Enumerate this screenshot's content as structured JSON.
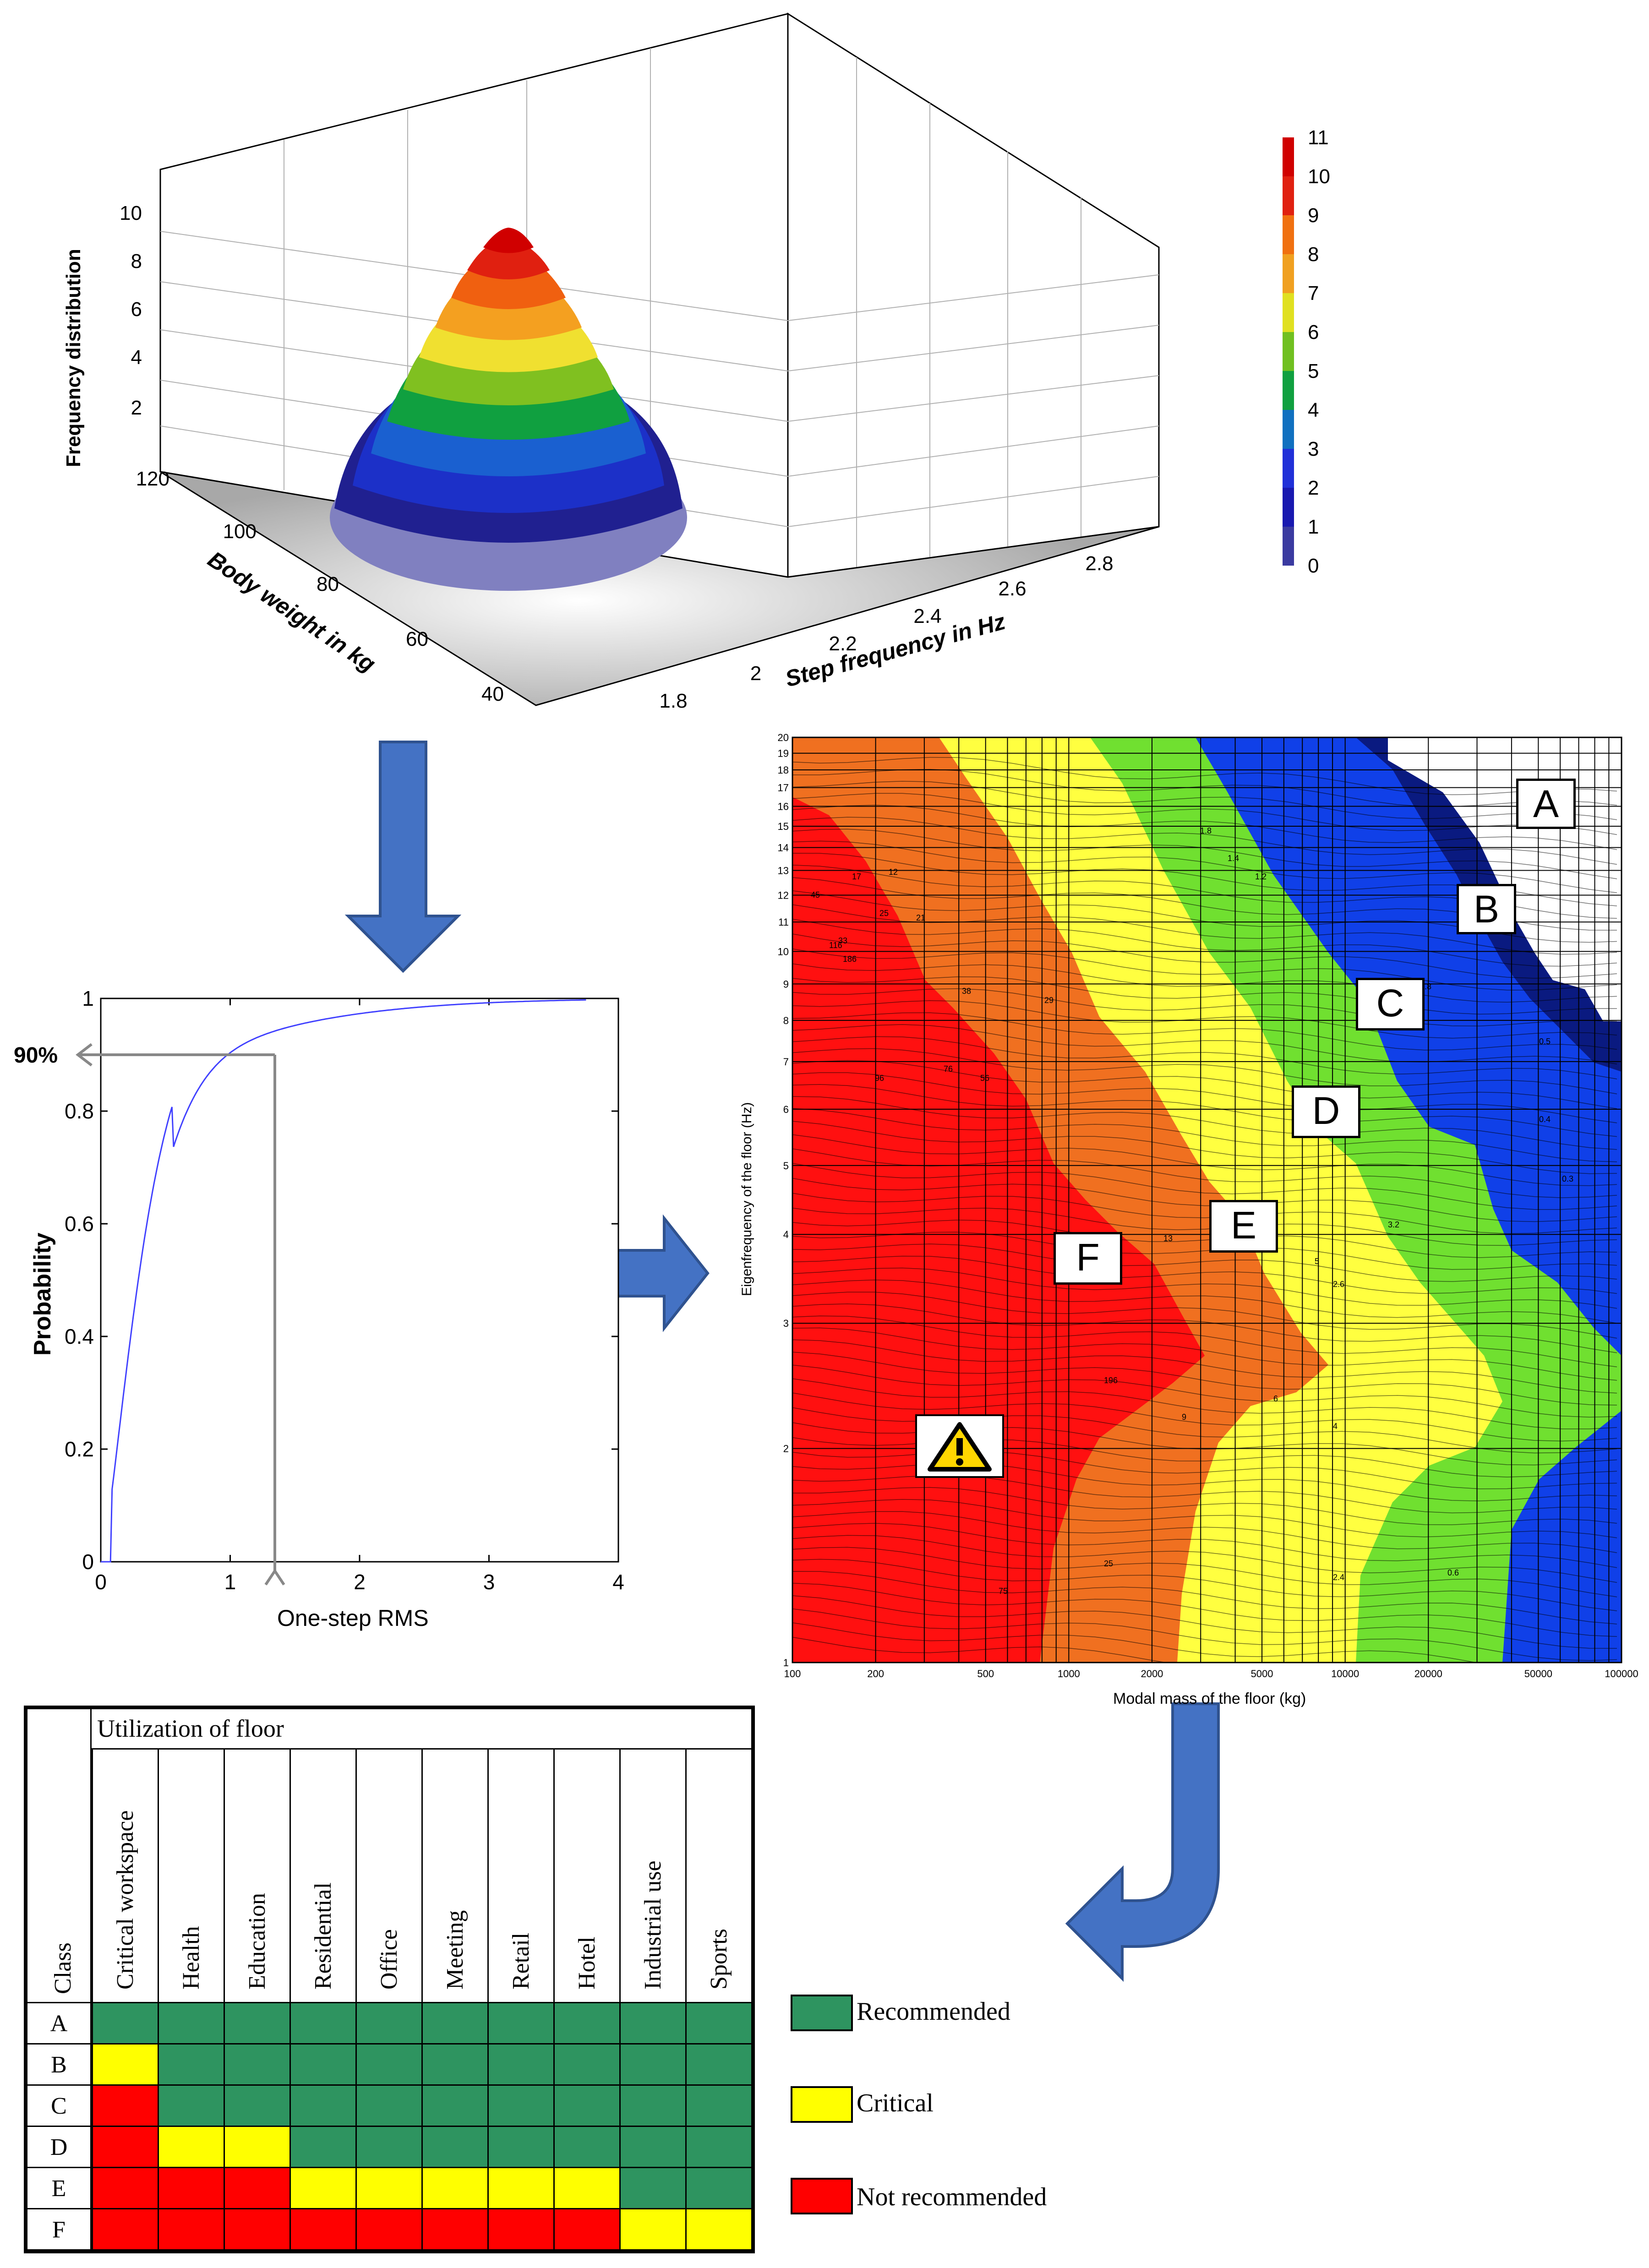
{
  "surface3d": {
    "z_axis_label": "Frequency distribution",
    "z_ticks": [
      "2",
      "4",
      "6",
      "8",
      "10"
    ],
    "y_axis_label": "Body weight in kg",
    "y_ticks": [
      "40",
      "60",
      "80",
      "100",
      "120"
    ],
    "x_axis_label": "Step frequency in Hz",
    "x_ticks": [
      "1.8",
      "2",
      "2.2",
      "2.4",
      "2.6",
      "2.8"
    ],
    "colorbar_ticks": [
      "0",
      "1",
      "2",
      "3",
      "4",
      "5",
      "6",
      "7",
      "8",
      "9",
      "10",
      "11"
    ],
    "colorbar_colors": [
      "#7f7fb0",
      "#3a3aa0",
      "#1818b0",
      "#2030d8",
      "#1070c0",
      "#10a040",
      "#70c020",
      "#e0e020",
      "#f0a020",
      "#f07010",
      "#e02010",
      "#d00000"
    ]
  },
  "cdf_chart": {
    "ylabel": "Probability",
    "xlabel": "One-step RMS",
    "y_ticks": [
      "0",
      "0.2",
      "0.4",
      "0.6",
      "0.8",
      "1"
    ],
    "x_ticks": [
      "0",
      "1",
      "2",
      "3",
      "4"
    ],
    "marker_label": "90%"
  },
  "contour_chart": {
    "ylabel": "Eigenfrequency of the floor (Hz)",
    "xlabel": "Modal mass of the floor (kg)",
    "y_ticks": [
      "1",
      "2",
      "3",
      "4",
      "5",
      "6",
      "7",
      "8",
      "9",
      "10",
      "11",
      "12",
      "13",
      "14",
      "15",
      "16",
      "17",
      "18",
      "19",
      "20"
    ],
    "x_ticks": [
      "100",
      "200",
      "500",
      "1000",
      "2000",
      "5000",
      "10000",
      "20000",
      "50000",
      "100000"
    ],
    "zones": [
      "A",
      "B",
      "C",
      "D",
      "E",
      "F"
    ],
    "zone_colors": {
      "A": "#ffffff",
      "B": "#0a1a80",
      "C": "#1040e8",
      "D": "#70e030",
      "E": "#ffff40",
      "F": "#f07020",
      "G": "#ff1010"
    },
    "contour_labels": [
      {
        "t": "116"
      },
      {
        "t": "186"
      },
      {
        "t": "96"
      },
      {
        "t": "76"
      },
      {
        "t": "56"
      },
      {
        "t": "38"
      },
      {
        "t": "29"
      },
      {
        "t": "12"
      },
      {
        "t": "17"
      },
      {
        "t": "25"
      },
      {
        "t": "45"
      },
      {
        "t": "33"
      },
      {
        "t": "21"
      },
      {
        "t": "13"
      },
      {
        "t": "8"
      },
      {
        "t": "5"
      },
      {
        "t": "3.2"
      },
      {
        "t": "2.6"
      },
      {
        "t": "1.8"
      },
      {
        "t": "1.4"
      },
      {
        "t": "1.2"
      },
      {
        "t": "0.8"
      },
      {
        "t": "0.5"
      },
      {
        "t": "0.4"
      },
      {
        "t": "0.3"
      },
      {
        "t": "196"
      },
      {
        "t": "75"
      },
      {
        "t": "25"
      },
      {
        "t": "9"
      },
      {
        "t": "6"
      },
      {
        "t": "4"
      },
      {
        "t": "2.4"
      },
      {
        "t": "0.6"
      }
    ]
  },
  "classification_table": {
    "header_title": "Utilization of floor",
    "class_header": "Class",
    "columns": [
      "Critical workspace",
      "Health",
      "Education",
      "Residential",
      "Office",
      "Meeting",
      "Retail",
      "Hotel",
      "Industrial use",
      "Sports"
    ],
    "rows": [
      {
        "cls": "A",
        "cells": [
          "R",
          "R",
          "R",
          "R",
          "R",
          "R",
          "R",
          "R",
          "R",
          "R"
        ]
      },
      {
        "cls": "B",
        "cells": [
          "C",
          "R",
          "R",
          "R",
          "R",
          "R",
          "R",
          "R",
          "R",
          "R"
        ]
      },
      {
        "cls": "C",
        "cells": [
          "N",
          "R",
          "R",
          "R",
          "R",
          "R",
          "R",
          "R",
          "R",
          "R"
        ]
      },
      {
        "cls": "D",
        "cells": [
          "N",
          "C",
          "C",
          "R",
          "R",
          "R",
          "R",
          "R",
          "R",
          "R"
        ]
      },
      {
        "cls": "E",
        "cells": [
          "N",
          "N",
          "N",
          "C",
          "C",
          "C",
          "C",
          "C",
          "R",
          "R"
        ]
      },
      {
        "cls": "F",
        "cells": [
          "N",
          "N",
          "N",
          "N",
          "N",
          "N",
          "N",
          "N",
          "C",
          "C"
        ]
      }
    ],
    "status_colors": {
      "R": "#2e9460",
      "C": "#ffff00",
      "N": "#ff0000"
    }
  },
  "legend": [
    {
      "key": "R",
      "label": "Recommended",
      "color": "#2e9460"
    },
    {
      "key": "C",
      "label": "Critical",
      "color": "#ffff00"
    },
    {
      "key": "N",
      "label": "Not recommended",
      "color": "#ff0000"
    }
  ],
  "colors": {
    "arrow": "#4472c4",
    "arrow_border": "#2f528f"
  }
}
